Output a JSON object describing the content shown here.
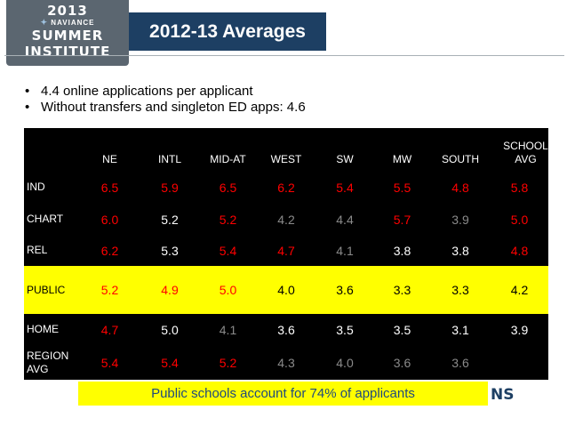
{
  "logo": {
    "year": "2013",
    "brand": "NAVIANCE",
    "line1": "SUMMER",
    "line2": "INSTITUTE"
  },
  "title": "2012-13 Averages",
  "bullets": [
    "4.4 online applications per applicant",
    "Without transfers and singleton ED apps: 4.6"
  ],
  "table": {
    "columns": [
      "NE",
      "INTL",
      "MID-AT",
      "WEST",
      "SW",
      "MW",
      "SOUTH",
      "SCHOOL AVG"
    ],
    "rows": [
      {
        "label": "IND",
        "cells": [
          {
            "v": "6.5",
            "c": "red"
          },
          {
            "v": "5.9",
            "c": "red"
          },
          {
            "v": "6.5",
            "c": "red",
            "big": true
          },
          {
            "v": "6.2",
            "c": "red"
          },
          {
            "v": "5.4",
            "c": "red"
          },
          {
            "v": "5.5",
            "c": "red"
          },
          {
            "v": "4.8",
            "c": "red"
          },
          {
            "v": "5.8",
            "c": "red"
          }
        ]
      },
      {
        "label": "CHART",
        "cells": [
          {
            "v": "6.0",
            "c": "red"
          },
          {
            "v": "5.2",
            "c": "white"
          },
          {
            "v": "5.2",
            "c": "red"
          },
          {
            "v": "4.2",
            "c": "gray"
          },
          {
            "v": "4.4",
            "c": "gray"
          },
          {
            "v": "5.7",
            "c": "red"
          },
          {
            "v": "3.9",
            "c": "gray"
          },
          {
            "v": "5.0",
            "c": "red"
          }
        ]
      },
      {
        "label": "REL",
        "cells": [
          {
            "v": "6.2",
            "c": "red"
          },
          {
            "v": "5.3",
            "c": "white"
          },
          {
            "v": "5.4",
            "c": "red"
          },
          {
            "v": "4.7",
            "c": "red"
          },
          {
            "v": "4.1",
            "c": "gray"
          },
          {
            "v": "3.8",
            "c": "white"
          },
          {
            "v": "3.8",
            "c": "white"
          },
          {
            "v": "4.8",
            "c": "red"
          }
        ]
      },
      {
        "label": "PUBLIC",
        "highlight": true,
        "cells": [
          {
            "v": "5.2",
            "c": "red"
          },
          {
            "v": "4.9",
            "c": "red"
          },
          {
            "v": "5.0",
            "c": "red"
          },
          {
            "v": "4.0",
            "c": "black"
          },
          {
            "v": "3.6",
            "c": "black"
          },
          {
            "v": "3.3",
            "c": "black"
          },
          {
            "v": "3.3",
            "c": "black"
          },
          {
            "v": "4.2",
            "c": "black"
          }
        ]
      },
      {
        "label": "HOME",
        "cells": [
          {
            "v": "4.7",
            "c": "red"
          },
          {
            "v": "5.0",
            "c": "white"
          },
          {
            "v": "4.1",
            "c": "gray"
          },
          {
            "v": "3.6",
            "c": "white"
          },
          {
            "v": "3.5",
            "c": "white"
          },
          {
            "v": "3.5",
            "c": "white"
          },
          {
            "v": "3.1",
            "c": "white"
          },
          {
            "v": "3.9",
            "c": "white"
          }
        ]
      },
      {
        "label": "REGION AVG",
        "cells": [
          {
            "v": "5.4",
            "c": "red"
          },
          {
            "v": "5.4",
            "c": "red"
          },
          {
            "v": "5.2",
            "c": "red"
          },
          {
            "v": "4.3",
            "c": "gray"
          },
          {
            "v": "4.0",
            "c": "gray"
          },
          {
            "v": "3.6",
            "c": "gray"
          },
          {
            "v": "3.6",
            "c": "gray"
          },
          {
            "v": "",
            "c": "gray"
          }
        ]
      }
    ]
  },
  "callout": "Public schools account for 74% of applicants",
  "partial_logo": "NS",
  "colors": {
    "title_bg": "#1d3f63",
    "logo_bg": "#5b6670",
    "highlight": "#ffff00",
    "value_red": "#ff0000",
    "value_gray": "#8a8a8a",
    "table_bg": "#000000"
  }
}
